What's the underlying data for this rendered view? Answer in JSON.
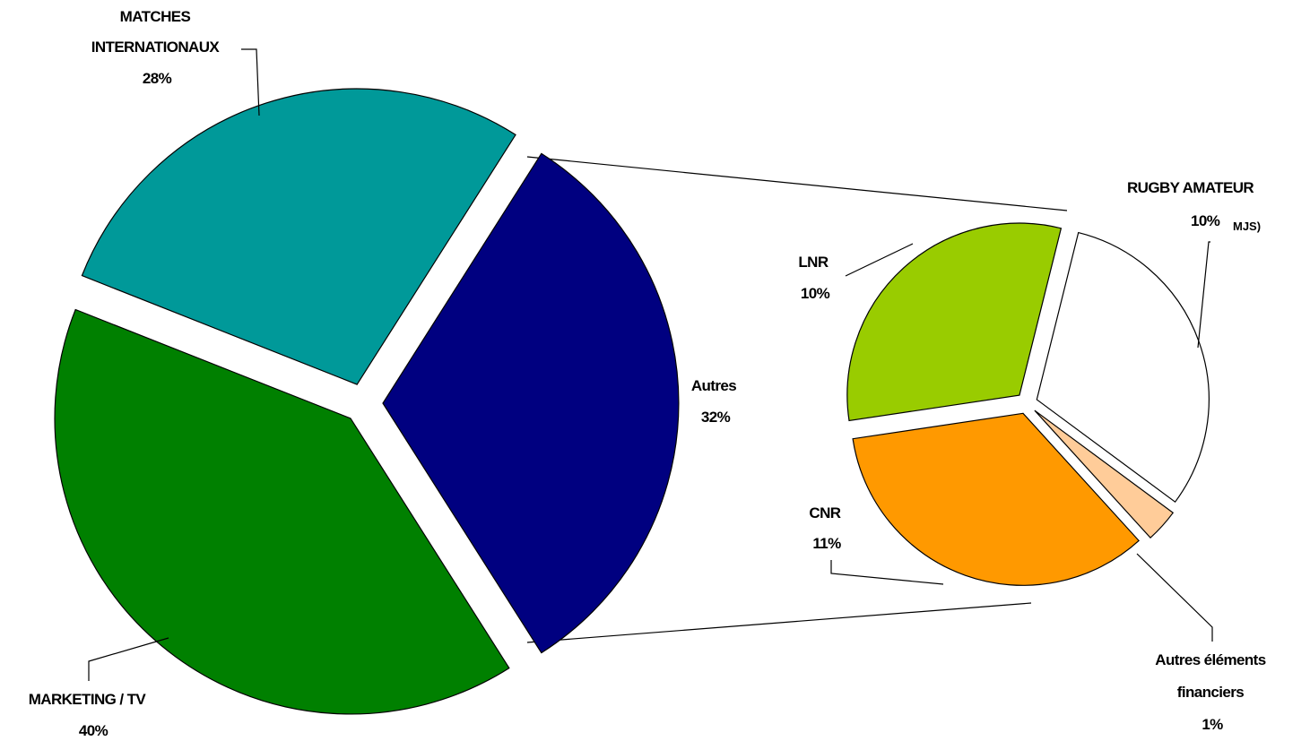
{
  "chart_data": {
    "type": "pie",
    "subtype": "pie-of-pie",
    "main_pie": {
      "slices": [
        {
          "label_lines": [
            "MATCHES",
            "INTERNATIONAUX"
          ],
          "value_label": "28%",
          "value": 28,
          "color": "#009999"
        },
        {
          "label_lines": [
            "Autres"
          ],
          "value_label": "32%",
          "value": 32,
          "color": "#000080"
        },
        {
          "label_lines": [
            "MARKETING / TV"
          ],
          "value_label": "40%",
          "value": 40,
          "color": "#008000"
        }
      ]
    },
    "secondary_pie": {
      "slices": [
        {
          "label_lines": [
            "RUGBY AMATEUR"
          ],
          "value_label": "10%",
          "value_suffix": "MJS)",
          "value": 10,
          "color": "#ffffff"
        },
        {
          "label_lines": [
            "Autres éléments",
            "financiers"
          ],
          "value_label": "1%",
          "value": 1,
          "color": "#ffcc99"
        },
        {
          "label_lines": [
            "CNR"
          ],
          "value_label": "11%",
          "value": 11,
          "color": "#ff9900"
        },
        {
          "label_lines": [
            "LNR"
          ],
          "value_label": "10%",
          "value": 10,
          "color": "#99cc00"
        }
      ]
    },
    "legend": "none"
  }
}
